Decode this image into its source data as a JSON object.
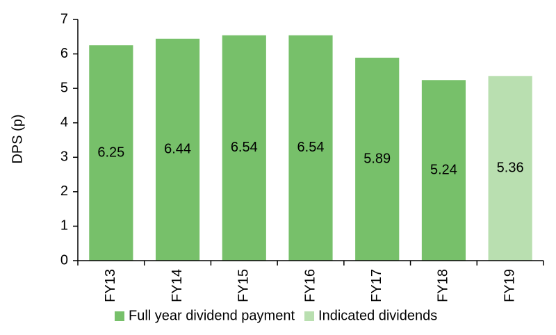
{
  "chart_data": {
    "type": "bar",
    "y_label": "DPS (p)",
    "categories": [
      "FY13",
      "FY14",
      "FY15",
      "FY16",
      "FY17",
      "FY18",
      "FY19"
    ],
    "series": [
      {
        "name": "Full year dividend payment",
        "color": "#77c06a",
        "values": [
          6.25,
          6.44,
          6.54,
          6.54,
          5.89,
          5.24,
          null
        ]
      },
      {
        "name": "Indicated dividends",
        "color": "#b9dfb0",
        "values": [
          null,
          null,
          null,
          null,
          null,
          null,
          5.36
        ]
      }
    ],
    "ylim": [
      0,
      7
    ],
    "yticks": [
      0,
      1,
      2,
      3,
      4,
      5,
      6,
      7
    ],
    "grid": false
  }
}
